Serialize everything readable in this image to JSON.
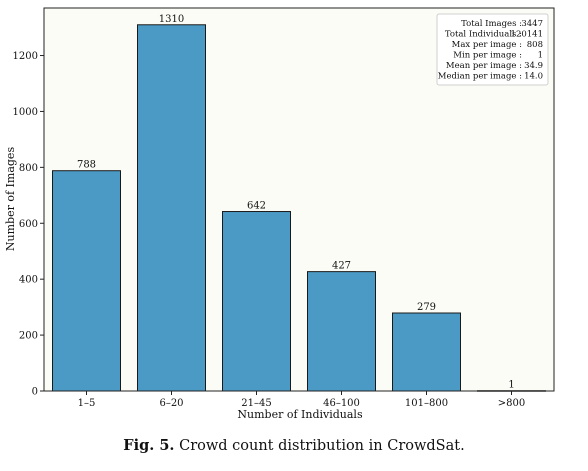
{
  "chart_data": {
    "type": "bar",
    "title": "",
    "xlabel": "Number of Individuals",
    "ylabel": "Number of Images",
    "categories": [
      "1–5",
      "6–20",
      "21–45",
      "46–100",
      "101–800",
      ">800"
    ],
    "values": [
      788,
      1310,
      642,
      427,
      279,
      1
    ],
    "data_labels": [
      "788",
      "1310",
      "642",
      "427",
      "279",
      "1"
    ],
    "ylim": [
      0,
      1370
    ],
    "yticks": [
      0,
      200,
      400,
      600,
      800,
      1000,
      1200
    ],
    "grid": false,
    "bar_color": "#4a9ac5",
    "bar_edge_color": "#1a1a1a",
    "stats_box": {
      "placement": "top-right",
      "rows": [
        {
          "label": "Total Images :",
          "value": "3447"
        },
        {
          "label": "Total Individuals :",
          "value": "120141"
        },
        {
          "label": "Max per image :",
          "value": "808"
        },
        {
          "label": "Min per image :",
          "value": "1"
        },
        {
          "label": "Mean per image :",
          "value": "34.9"
        },
        {
          "label": "Median per image :",
          "value": "14.0"
        }
      ]
    }
  },
  "caption": {
    "label": "Fig. 5.",
    "text": "Crowd count distribution in CrowdSat."
  }
}
